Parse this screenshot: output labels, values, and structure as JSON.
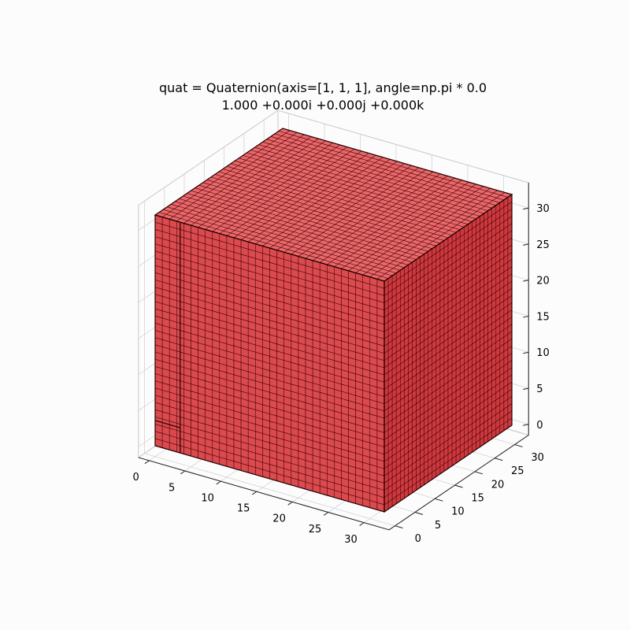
{
  "figure": {
    "title_line1": "quat = Quaternion(axis=[1, 1, 1], angle=np.pi * 0.0",
    "title_line2": "1.000 +0.000i +0.000j +0.000k"
  },
  "chart_data": {
    "type": "voxels-3d",
    "title": "quat = Quaternion(axis=[1, 1, 1], angle=np.pi * 0.0\n1.000 +0.000i +0.000j +0.000k",
    "xlabel": "",
    "ylabel": "",
    "zlabel": "",
    "xlim": [
      0,
      32
    ],
    "ylim": [
      0,
      32
    ],
    "zlim": [
      0,
      32
    ],
    "x_ticks": [
      0,
      5,
      10,
      15,
      20,
      25,
      30
    ],
    "y_ticks": [
      0,
      5,
      10,
      15,
      20,
      25,
      30
    ],
    "z_ticks": [
      0,
      5,
      10,
      15,
      20,
      25,
      30
    ],
    "grid": true,
    "voxel_color": "#ff0000",
    "voxel_alpha": 0.5,
    "edge_color": "#000000",
    "blocks": [
      {
        "x": [
          0,
          32
        ],
        "y": [
          0,
          32
        ],
        "z": [
          0,
          32
        ],
        "note": "filled cube with small notches near edges"
      }
    ]
  },
  "colors": {
    "background": "#fcfcfc",
    "voxel_fill": "#e8575a",
    "voxel_fill_dark": "#b8141a",
    "voxel_edge": "#3a0000"
  }
}
